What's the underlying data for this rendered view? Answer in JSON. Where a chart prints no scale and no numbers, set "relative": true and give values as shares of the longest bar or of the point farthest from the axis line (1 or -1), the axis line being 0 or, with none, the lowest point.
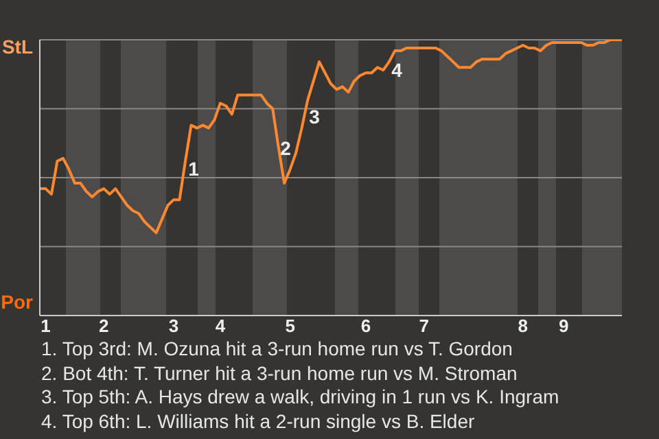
{
  "chart_data": {
    "type": "line",
    "relative": true,
    "grid": "y",
    "categories": [
      null,
      "1",
      null,
      null,
      null,
      null,
      null,
      null,
      null,
      null,
      null,
      "2",
      null,
      null,
      null,
      null,
      null,
      null,
      null,
      null,
      null,
      null,
      null,
      "3",
      null,
      null,
      null,
      null,
      null,
      null,
      null,
      "4",
      null,
      null,
      null,
      null,
      null,
      null,
      null,
      null,
      null,
      null,
      null,
      "5",
      null,
      null,
      null,
      null,
      null,
      null,
      null,
      null,
      null,
      null,
      null,
      null,
      "6",
      null,
      null,
      null,
      null,
      null,
      null,
      null,
      null,
      null,
      "7",
      null,
      null,
      null,
      null,
      null,
      null,
      null,
      null,
      null,
      null,
      null,
      null,
      null,
      null,
      null,
      null,
      "8",
      null,
      null,
      null,
      null,
      null,
      null,
      "9",
      null,
      null,
      null,
      null,
      null,
      null,
      null,
      null,
      null,
      null
    ],
    "series": [
      {
        "color": "#ff8833",
        "values": [
          0.46,
          0.46,
          0.44,
          0.56,
          0.57,
          0.53,
          0.48,
          0.48,
          0.45,
          0.43,
          0.45,
          0.46,
          0.44,
          0.46,
          0.43,
          0.4,
          0.38,
          0.37,
          0.34,
          0.32,
          0.3,
          0.35,
          0.4,
          0.42,
          0.42,
          0.56,
          0.69,
          0.68,
          0.69,
          0.68,
          0.71,
          0.77,
          0.76,
          0.73,
          0.8,
          0.8,
          0.8,
          0.8,
          0.8,
          0.77,
          0.75,
          0.61,
          0.48,
          0.53,
          0.59,
          0.68,
          0.78,
          0.85,
          0.92,
          0.88,
          0.84,
          0.82,
          0.83,
          0.81,
          0.85,
          0.87,
          0.88,
          0.88,
          0.9,
          0.89,
          0.92,
          0.96,
          0.96,
          0.97,
          0.97,
          0.97,
          0.97,
          0.97,
          0.97,
          0.96,
          0.94,
          0.92,
          0.9,
          0.9,
          0.9,
          0.92,
          0.93,
          0.93,
          0.93,
          0.93,
          0.95,
          0.96,
          0.97,
          0.98,
          0.97,
          0.97,
          0.96,
          0.98,
          0.99,
          0.99,
          0.99,
          0.99,
          0.99,
          0.99,
          0.98,
          0.98,
          0.99,
          0.99,
          1,
          1,
          1
        ]
      }
    ],
    "annotations": [
      "StL",
      "Por",
      "1",
      "2",
      "3",
      "4",
      "1. Top 3rd: M. Ozuna hit a 3-run home run vs T. Gordon",
      "2. Bot 4th: T. Turner hit a 3-run home run vs M. Stroman",
      "3. Top 5th: A. Hays drew a walk, driving in 1 run vs K. Ingram",
      "4. Top 6th: L. Williams hit a 2-run single vs B. Elder"
    ]
  }
}
